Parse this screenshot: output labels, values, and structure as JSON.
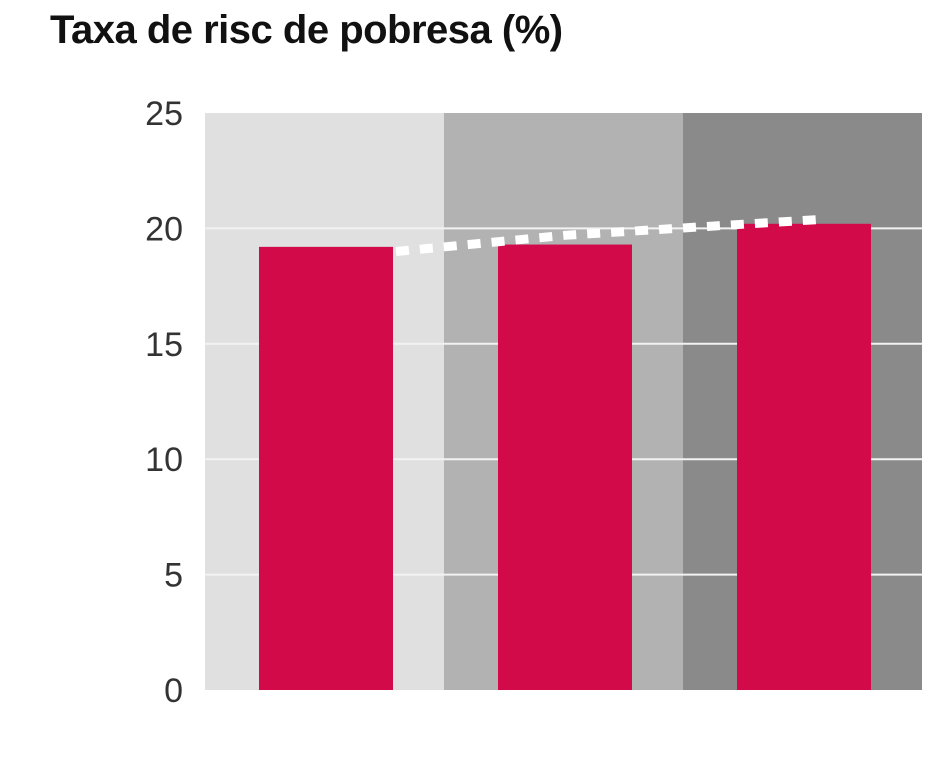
{
  "chart_data": {
    "type": "bar",
    "title": "Taxa de risc de pobresa (%)",
    "xlabel": "",
    "ylabel": "",
    "categories": [
      "",
      "",
      ""
    ],
    "series": [
      {
        "values": [
          19.2,
          19.3,
          20.2
        ]
      }
    ],
    "reference_line": {
      "values": [
        19.0,
        19.7,
        20.4
      ]
    },
    "ylim": [
      0,
      25
    ],
    "yticks": [
      "0",
      "5",
      "10",
      "15",
      "20",
      "25"
    ],
    "grid": true,
    "legend": "none"
  },
  "colors": {
    "bar": "#d30a4a",
    "panel_bg": [
      "#e0e0e0",
      "#b2b2b2",
      "#8a8a8a"
    ],
    "gridline": "#f2f2f2",
    "reference_line": "#ffffff"
  }
}
